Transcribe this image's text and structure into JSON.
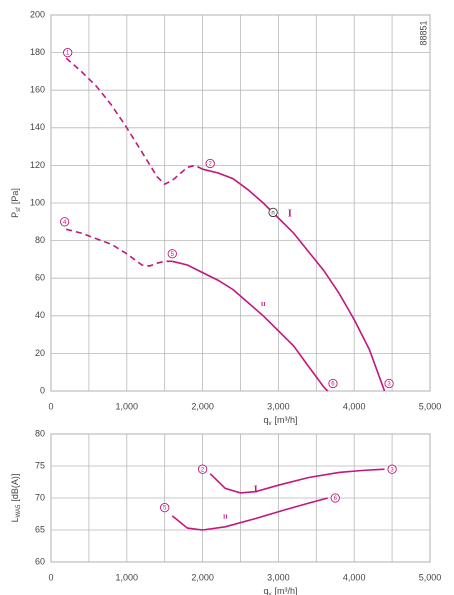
{
  "chart_data": [
    {
      "type": "line",
      "code": "88851",
      "xlabel": {
        "main": "q",
        "sub": "v",
        "unit": "[m³/h]"
      },
      "ylabel": {
        "main": "P",
        "sub": "sf",
        "unit": "[Pa]"
      },
      "xlim": [
        0,
        5000
      ],
      "xticks": [
        0,
        {
          "value": 1000,
          "label": "1,000"
        },
        {
          "value": 2000,
          "label": "2,000"
        },
        {
          "value": 3000,
          "label": "3,000"
        },
        {
          "value": 4000,
          "label": "4,000"
        },
        {
          "value": 5000,
          "label": "5,000"
        }
      ],
      "xminor": [
        500,
        1500,
        2500,
        3500,
        4500
      ],
      "ylim": [
        0,
        200
      ],
      "yticks": [
        0,
        20,
        40,
        60,
        80,
        100,
        120,
        140,
        160,
        180,
        200
      ],
      "grid": true,
      "series": [
        {
          "name": "I",
          "color": "#c2177e",
          "dash_count": 12,
          "label_x": 3150,
          "label_y": 94,
          "x": [
            200,
            400,
            600,
            800,
            1000,
            1200,
            1400,
            1500,
            1600,
            1800,
            1900,
            2000,
            2200,
            2400,
            2600,
            2800,
            3000,
            3200,
            3400,
            3600,
            3800,
            4000,
            4200,
            4400
          ],
          "values": [
            177,
            170,
            162,
            152,
            140,
            127,
            114,
            110,
            112,
            119,
            120,
            118,
            116,
            113,
            107,
            100,
            92,
            84,
            74,
            64,
            52,
            38,
            22,
            0
          ]
        },
        {
          "name": "II",
          "color": "#c2177e",
          "dash_count": 10,
          "label_x": 2800,
          "label_y": 46,
          "x": [
            200,
            400,
            600,
            800,
            1000,
            1200,
            1300,
            1400,
            1500,
            1600,
            1800,
            2000,
            2200,
            2400,
            2600,
            2800,
            3000,
            3200,
            3400,
            3600,
            3650
          ],
          "values": [
            86,
            84,
            81,
            78,
            73,
            67,
            66.5,
            68,
            69,
            69,
            67,
            63,
            59,
            54,
            47,
            40,
            32,
            24,
            13,
            2,
            0
          ]
        }
      ],
      "annotations": [
        {
          "text": "1",
          "x": 220,
          "y": 180
        },
        {
          "text": "2",
          "x": 2100,
          "y": 121
        },
        {
          "text": "3",
          "x": 4460,
          "y": 4
        },
        {
          "text": "4",
          "x": 180,
          "y": 90
        },
        {
          "text": "5",
          "x": 1600,
          "y": 73
        },
        {
          "text": "6",
          "x": 3720,
          "y": 4
        },
        {
          "text": "n",
          "x": 2930,
          "y": 95
        }
      ]
    },
    {
      "type": "line",
      "xlabel": {
        "main": "q",
        "sub": "v",
        "unit": "[m³/h]"
      },
      "ylabel": {
        "main": "L",
        "sub": "WA5",
        "unit": "[dB(A)]"
      },
      "xlim": [
        0,
        5000
      ],
      "xticks": [
        0,
        {
          "value": 1000,
          "label": "1,000"
        },
        {
          "value": 2000,
          "label": "2,000"
        },
        {
          "value": 3000,
          "label": "3,000"
        },
        {
          "value": 4000,
          "label": "4,000"
        },
        {
          "value": 5000,
          "label": "5,000"
        }
      ],
      "xminor": [
        500,
        1500,
        2500,
        3500,
        4500
      ],
      "ylim": [
        60,
        80
      ],
      "yticks": [
        60,
        65,
        70,
        75,
        80
      ],
      "grid": true,
      "series": [
        {
          "name": "I",
          "color": "#c2177e",
          "dash_count": 0,
          "label_x": 2700,
          "label_y": 71.2,
          "x": [
            2100,
            2300,
            2500,
            2700,
            3000,
            3400,
            3800,
            4100,
            4400
          ],
          "values": [
            73.8,
            71.5,
            70.8,
            71,
            72,
            73.2,
            74,
            74.3,
            74.5
          ]
        },
        {
          "name": "II",
          "color": "#c2177e",
          "dash_count": 0,
          "label_x": 2300,
          "label_y": 67,
          "x": [
            1600,
            1800,
            2000,
            2300,
            2700,
            3100,
            3400,
            3650
          ],
          "values": [
            67.2,
            65.3,
            65,
            65.5,
            66.8,
            68.2,
            69.2,
            70
          ]
        }
      ],
      "annotations": [
        {
          "text": "2",
          "x": 2000,
          "y": 74.5
        },
        {
          "text": "3",
          "x": 4500,
          "y": 74.5
        },
        {
          "text": "5",
          "x": 1500,
          "y": 68.5
        },
        {
          "text": "6",
          "x": 3750,
          "y": 70
        }
      ]
    }
  ]
}
